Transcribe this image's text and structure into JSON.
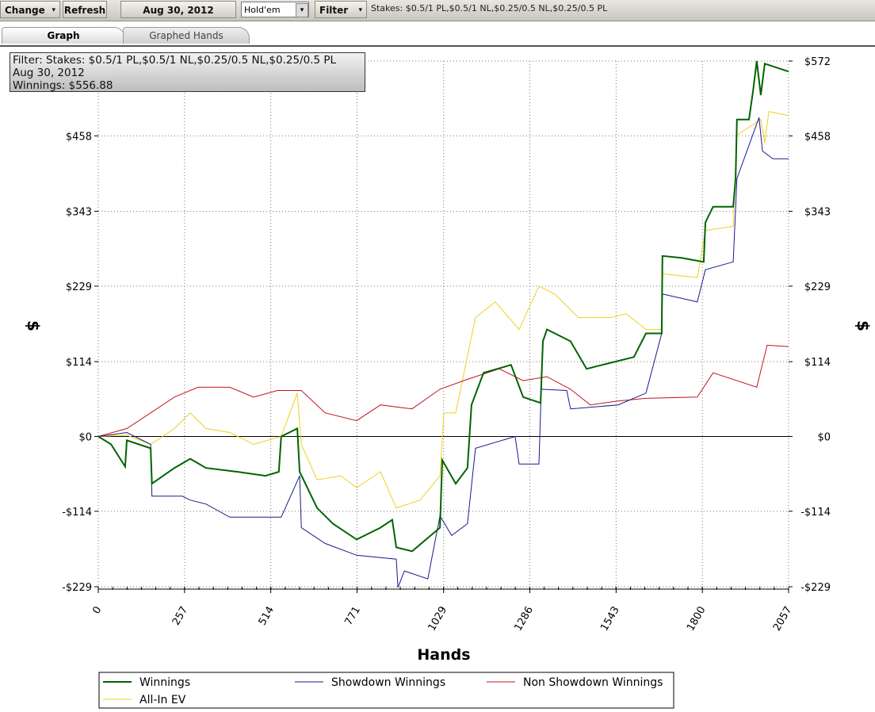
{
  "toolbar": {
    "change": "Change",
    "refresh": "Refresh",
    "date": "Aug 30, 2012",
    "game": "Hold'em",
    "filter": "Filter",
    "stakes": "Stakes: $0.5/1 PL,$0.5/1 NL,$0.25/0.5 NL,$0.25/0.5 PL"
  },
  "tabs": [
    "Graph",
    "Graphed Hands"
  ],
  "chart_data": {
    "type": "line",
    "info_box": [
      "Filter: Stakes: $0.5/1 PL,$0.5/1 NL,$0.25/0.5 NL,$0.25/0.5 PL",
      "Aug 30, 2012",
      "Winnings: $556.88"
    ],
    "x_label": "Hands",
    "y_label": "$",
    "xlim": [
      0,
      2057
    ],
    "xticks": [
      0,
      257,
      514,
      771,
      1029,
      1286,
      1543,
      1800,
      2057
    ],
    "ylim": [
      -229,
      572
    ],
    "yticks": [
      {
        "value": -229,
        "label": "-$229"
      },
      {
        "value": -114,
        "label": "-$114"
      },
      {
        "value": 0,
        "label": "$0"
      },
      {
        "value": 114,
        "label": "$114"
      },
      {
        "value": 229,
        "label": "$229"
      },
      {
        "value": 343,
        "label": "$343"
      },
      {
        "value": 458,
        "label": "$458"
      },
      {
        "value": 572,
        "label": "$572"
      }
    ],
    "grid": true,
    "series": [
      {
        "name": "Winnings",
        "color": "#006400",
        "x": [
          0,
          38,
          80,
          85,
          156,
          160,
          227,
          274,
          321,
          416,
          498,
          538,
          545,
          593,
          600,
          652,
          699,
          770,
          841,
          876,
          888,
          935,
          1018,
          1025,
          1065,
          1100,
          1112,
          1148,
          1230,
          1266,
          1318,
          1325,
          1337,
          1407,
          1455,
          1502,
          1596,
          1632,
          1679,
          1681,
          1738,
          1804,
          1809,
          1832,
          1892,
          1899,
          1903,
          1939,
          1951,
          1962,
          1974,
          1986,
          2045,
          2057
        ],
        "values": [
          0,
          -12,
          -46,
          -6,
          -18,
          -72,
          -48,
          -34,
          -48,
          -54,
          -60,
          -54,
          0,
          12,
          -54,
          -109,
          -133,
          -157,
          -139,
          -127,
          -169,
          -175,
          -139,
          -36,
          -72,
          -48,
          48,
          97,
          109,
          60,
          51,
          145,
          163,
          145,
          103,
          109,
          121,
          157,
          157,
          275,
          272,
          266,
          326,
          350,
          350,
          393,
          483,
          483,
          526,
          572,
          520,
          568,
          558,
          556
        ]
      },
      {
        "name": "Showdown Winnings",
        "color": "#1a1a8c",
        "x": [
          0,
          85,
          156,
          160,
          250,
          274,
          321,
          392,
          545,
          600,
          605,
          676,
          770,
          888,
          893,
          912,
          982,
          1018,
          1053,
          1100,
          1124,
          1242,
          1254,
          1313,
          1320,
          1396,
          1407,
          1549,
          1632,
          1679,
          1681,
          1785,
          1809,
          1892,
          1903,
          1969,
          1979,
          2010,
          2057
        ],
        "values": [
          0,
          6,
          -12,
          -91,
          -91,
          -97,
          -103,
          -123,
          -123,
          -60,
          -139,
          -163,
          -181,
          -187,
          -230,
          -205,
          -217,
          -121,
          -151,
          -133,
          -18,
          0,
          -42,
          -42,
          72,
          70,
          42,
          48,
          66,
          157,
          217,
          205,
          254,
          266,
          393,
          486,
          435,
          423,
          423
        ]
      },
      {
        "name": "Non Showdown Winnings",
        "color": "#c0141c",
        "x": [
          0,
          85,
          156,
          227,
          297,
          392,
          463,
          534,
          605,
          676,
          770,
          841,
          935,
          1018,
          1100,
          1195,
          1266,
          1337,
          1407,
          1466,
          1549,
          1632,
          1785,
          1832,
          1962,
          1993,
          2057
        ],
        "values": [
          0,
          12,
          36,
          60,
          75,
          75,
          60,
          70,
          70,
          36,
          24,
          48,
          42,
          72,
          87,
          103,
          85,
          91,
          72,
          48,
          54,
          58,
          60,
          97,
          75,
          139,
          137
        ]
      },
      {
        "name": "All-In EV",
        "color": "#f0d020",
        "x": [
          0,
          85,
          156,
          227,
          274,
          321,
          392,
          463,
          545,
          593,
          605,
          652,
          723,
          770,
          841,
          888,
          959,
          1018,
          1030,
          1065,
          1124,
          1183,
          1254,
          1313,
          1360,
          1431,
          1526,
          1573,
          1632,
          1679,
          1681,
          1785,
          1809,
          1892,
          1903,
          1974,
          1986,
          1998,
          2057
        ],
        "values": [
          0,
          2,
          -12,
          12,
          36,
          12,
          6,
          -12,
          0,
          66,
          -12,
          -66,
          -60,
          -78,
          -54,
          -109,
          -97,
          -60,
          36,
          36,
          181,
          205,
          163,
          229,
          217,
          181,
          181,
          187,
          163,
          163,
          248,
          242,
          314,
          320,
          459,
          483,
          447,
          495,
          489
        ]
      }
    ]
  }
}
